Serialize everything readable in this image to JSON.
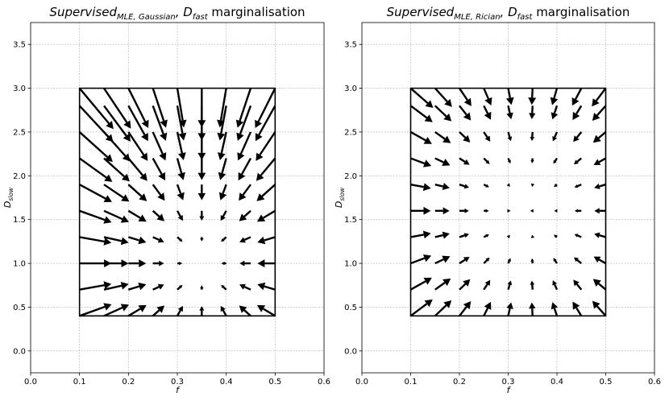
{
  "chart_data": [
    {
      "type": "quiver",
      "title": {
        "main": "Supervised",
        "sub": "MLE, Gaussian",
        "sep": ", D",
        "sub2": "fast",
        "rest": " marginalisation"
      },
      "xlabel": "f",
      "ylabel": {
        "main": "D",
        "sub": "slow"
      },
      "xlim": [
        0.0,
        0.6
      ],
      "ylim": [
        -0.25,
        3.75
      ],
      "xticks": [
        "0.0",
        "0.1",
        "0.2",
        "0.3",
        "0.4",
        "0.5",
        "0.6"
      ],
      "yticks": [
        "0.0",
        "0.5",
        "1.0",
        "1.5",
        "2.0",
        "2.5",
        "3.0",
        "3.5"
      ],
      "grid": true,
      "boundary": {
        "f": [
          0.1,
          0.5
        ],
        "d": [
          0.4,
          3.0
        ]
      },
      "vector_field": {
        "f_values": [
          0.1,
          0.15,
          0.2,
          0.25,
          0.3,
          0.35,
          0.4,
          0.45,
          0.5
        ],
        "d_values": [
          0.4,
          0.7,
          1.0,
          1.3,
          1.6,
          1.9,
          2.2,
          2.5,
          2.8,
          3.0
        ],
        "focus": [
          0.35,
          1.0
        ],
        "magnitude": 0.9,
        "exponent": 1.15
      }
    },
    {
      "type": "quiver",
      "title": {
        "main": "Supervised",
        "sub": "MLE, Rician",
        "sep": ", D",
        "sub2": "fast",
        "rest": " marginalisation"
      },
      "xlabel": "f",
      "ylabel": {
        "main": "D",
        "sub": "slow"
      },
      "xlim": [
        0.0,
        0.6
      ],
      "ylim": [
        -0.25,
        3.75
      ],
      "xticks": [
        "0.0",
        "0.1",
        "0.2",
        "0.3",
        "0.4",
        "0.5",
        "0.6"
      ],
      "yticks": [
        "0.0",
        "0.5",
        "1.0",
        "1.5",
        "2.0",
        "2.5",
        "3.0",
        "3.5"
      ],
      "grid": true,
      "boundary": {
        "f": [
          0.1,
          0.5
        ],
        "d": [
          0.4,
          3.0
        ]
      },
      "vector_field": {
        "f_values": [
          0.1,
          0.15,
          0.2,
          0.25,
          0.3,
          0.35,
          0.4,
          0.45,
          0.5
        ],
        "d_values": [
          0.4,
          0.7,
          1.0,
          1.3,
          1.6,
          1.9,
          2.2,
          2.5,
          2.8,
          3.0
        ],
        "focus": [
          0.34,
          1.6
        ],
        "magnitude": 0.75,
        "exponent": 1.4
      }
    }
  ]
}
